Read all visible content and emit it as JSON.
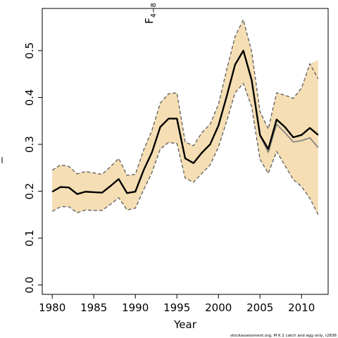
{
  "chart_data": {
    "type": "line",
    "title": "",
    "xlabel": "Year",
    "ylabel": "F",
    "ylabel_sub": "4−8",
    "xlim": [
      1978.8,
      2013.2
    ],
    "ylim": [
      -0.02,
      0.59
    ],
    "x_ticks": [
      1980,
      1985,
      1990,
      1995,
      2000,
      2005,
      2010
    ],
    "y_ticks": [
      0.0,
      0.1,
      0.2,
      0.3,
      0.4,
      0.5
    ],
    "y_tick_labels": [
      "0.0",
      "0.1",
      "0.2",
      "0.3",
      "0.4",
      "0.5"
    ],
    "grid": false,
    "x": [
      1980,
      1981,
      1982,
      1983,
      1984,
      1985,
      1986,
      1987,
      1988,
      1989,
      1990,
      1991,
      1992,
      1993,
      1994,
      1995,
      1996,
      1997,
      1998,
      1999,
      2000,
      2001,
      2002,
      2003,
      2004,
      2005,
      2006,
      2007,
      2008,
      2009,
      2010,
      2011,
      2012
    ],
    "series": [
      {
        "role": "estimate",
        "values": [
          0.199,
          0.209,
          0.208,
          0.194,
          0.199,
          0.198,
          0.197,
          0.211,
          0.226,
          0.196,
          0.199,
          0.245,
          0.283,
          0.337,
          0.355,
          0.355,
          0.27,
          0.26,
          0.282,
          0.3,
          0.34,
          0.403,
          0.47,
          0.5,
          0.437,
          0.32,
          0.29,
          0.353,
          0.337,
          0.315,
          0.32,
          0.335,
          0.32
        ],
        "color": "#000000"
      },
      {
        "role": "alternative",
        "values": [
          0.199,
          0.209,
          0.208,
          0.194,
          0.199,
          0.198,
          0.197,
          0.211,
          0.226,
          0.196,
          0.199,
          0.245,
          0.283,
          0.337,
          0.355,
          0.355,
          0.27,
          0.26,
          0.282,
          0.3,
          0.34,
          0.403,
          0.47,
          0.5,
          0.437,
          0.318,
          0.283,
          0.343,
          0.325,
          0.305,
          0.308,
          0.314,
          0.293
        ],
        "color": "#7f7f7f"
      },
      {
        "role": "upper-bound",
        "values": [
          0.245,
          0.256,
          0.253,
          0.237,
          0.242,
          0.239,
          0.236,
          0.252,
          0.27,
          0.234,
          0.236,
          0.288,
          0.33,
          0.388,
          0.408,
          0.41,
          0.305,
          0.297,
          0.325,
          0.343,
          0.385,
          0.46,
          0.53,
          0.566,
          0.498,
          0.37,
          0.333,
          0.41,
          0.405,
          0.398,
          0.42,
          0.472,
          0.48
        ],
        "color": "#666666"
      },
      {
        "role": "lower-bound",
        "values": [
          0.157,
          0.167,
          0.167,
          0.154,
          0.16,
          0.159,
          0.159,
          0.172,
          0.186,
          0.16,
          0.164,
          0.203,
          0.24,
          0.29,
          0.304,
          0.302,
          0.228,
          0.219,
          0.238,
          0.256,
          0.294,
          0.35,
          0.41,
          0.43,
          0.38,
          0.268,
          0.238,
          0.285,
          0.255,
          0.225,
          0.21,
          0.185,
          0.15
        ]
      }
    ],
    "upper_dashed_end": 0.44,
    "band_color": "#f5deb3",
    "credit": "stockassessment.org, M K 2 catch and egg only, r2836"
  }
}
